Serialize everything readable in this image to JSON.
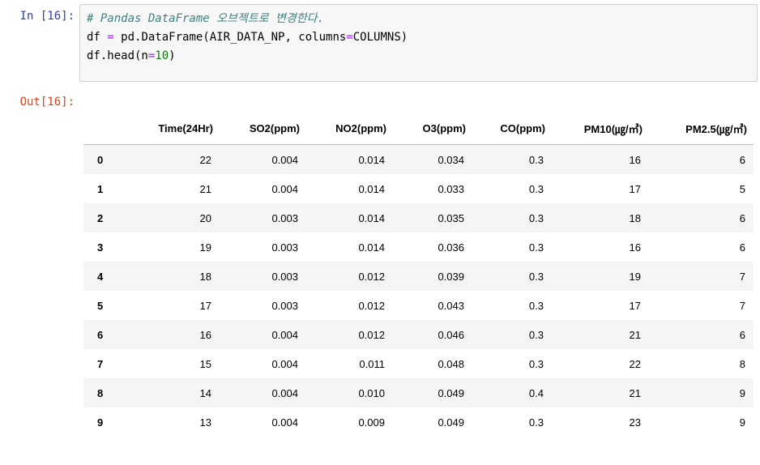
{
  "cell": {
    "in_prompt": "In [16]:",
    "out_prompt": "Out[16]:",
    "code": {
      "comment": "# Pandas DataFrame 오브젝트로 변경한다.",
      "line2_a": "df ",
      "line2_eq": "=",
      "line2_b": " pd.DataFrame(AIR_DATA_NP, columns",
      "line2_eq2": "=",
      "line2_c": "COLUMNS)",
      "line3_a": "df.head(n",
      "line3_eq": "=",
      "line3_num": "10",
      "line3_b": ")"
    }
  },
  "table": {
    "columns": [
      "",
      "Time(24Hr)",
      "SO2(ppm)",
      "NO2(ppm)",
      "O3(ppm)",
      "CO(ppm)",
      "PM10(㎍/㎥)",
      "PM2.5(㎍/㎥)"
    ],
    "rows": [
      [
        "0",
        "22",
        "0.004",
        "0.014",
        "0.034",
        "0.3",
        "16",
        "6"
      ],
      [
        "1",
        "21",
        "0.004",
        "0.014",
        "0.033",
        "0.3",
        "17",
        "5"
      ],
      [
        "2",
        "20",
        "0.003",
        "0.014",
        "0.035",
        "0.3",
        "18",
        "6"
      ],
      [
        "3",
        "19",
        "0.003",
        "0.014",
        "0.036",
        "0.3",
        "16",
        "6"
      ],
      [
        "4",
        "18",
        "0.003",
        "0.012",
        "0.039",
        "0.3",
        "19",
        "7"
      ],
      [
        "5",
        "17",
        "0.003",
        "0.012",
        "0.043",
        "0.3",
        "17",
        "7"
      ],
      [
        "6",
        "16",
        "0.004",
        "0.012",
        "0.046",
        "0.3",
        "21",
        "6"
      ],
      [
        "7",
        "15",
        "0.004",
        "0.011",
        "0.048",
        "0.3",
        "22",
        "8"
      ],
      [
        "8",
        "14",
        "0.004",
        "0.010",
        "0.049",
        "0.4",
        "21",
        "9"
      ],
      [
        "9",
        "13",
        "0.004",
        "0.009",
        "0.049",
        "0.3",
        "23",
        "9"
      ]
    ]
  }
}
